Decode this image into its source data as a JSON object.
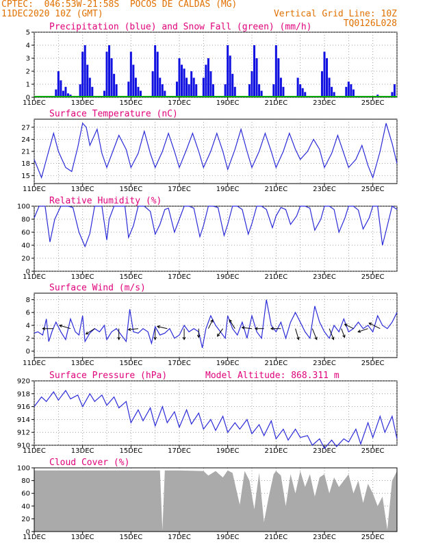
{
  "header": {
    "line1_left": "CPTEC:  046:53W-21:58S  POCOS DE CALDAS (MG)",
    "line2_left": "11DEC2020 10Z (GMT)",
    "line2_right": "Vertical Grid Line: 10Z",
    "line3_right": "TQ0126L028"
  },
  "colors": {
    "series": "#2a2ad8",
    "bars": "#1010e0",
    "snow": "#00aa00",
    "cloud": "#aaaaaa",
    "title": "#e0007a",
    "header": "#e07000"
  },
  "chart_data": [
    {
      "type": "bar",
      "title": "Precipitation (blue) and Snow Fall (green) (mm/h)",
      "ylim": [
        0,
        5
      ],
      "yticks": [
        0,
        1,
        2,
        3,
        4,
        5
      ],
      "xticks": [
        "11DEC",
        "13DEC",
        "15DEC",
        "17DEC",
        "19DEC",
        "21DEC",
        "23DEC",
        "25DEC"
      ],
      "x_range_days": [
        0,
        15
      ],
      "series": [
        {
          "name": "precipitation",
          "color": "blue",
          "days": [
            0.9,
            1.0,
            1.1,
            1.2,
            1.3,
            1.4,
            1.5,
            1.9,
            2.0,
            2.1,
            2.2,
            2.3,
            2.4,
            2.9,
            3.0,
            3.1,
            3.2,
            3.3,
            3.4,
            3.9,
            4.0,
            4.1,
            4.2,
            4.3,
            4.4,
            4.9,
            5.0,
            5.1,
            5.2,
            5.3,
            5.4,
            5.9,
            6.0,
            6.1,
            6.2,
            6.3,
            6.4,
            6.5,
            6.6,
            6.7,
            7.0,
            7.1,
            7.2,
            7.3,
            7.4,
            7.9,
            8.0,
            8.1,
            8.2,
            8.3,
            8.9,
            9.0,
            9.1,
            9.2,
            9.3,
            9.4,
            9.9,
            10.0,
            10.1,
            10.2,
            10.3,
            10.9,
            11.0,
            11.1,
            11.2,
            11.9,
            12.0,
            12.1,
            12.2,
            12.3,
            12.4,
            12.9,
            13.0,
            13.1,
            13.2,
            14.2,
            14.8,
            14.9
          ],
          "values": [
            0.6,
            2.0,
            1.3,
            0.5,
            0.8,
            0.3,
            0.2,
            1.0,
            3.5,
            4.0,
            2.5,
            1.5,
            0.8,
            0.5,
            3.5,
            4.0,
            3.0,
            1.8,
            1.0,
            1.2,
            3.5,
            2.5,
            1.5,
            0.8,
            0.5,
            2.0,
            4.0,
            3.5,
            1.5,
            1.0,
            0.5,
            1.2,
            3.0,
            2.5,
            2.2,
            1.5,
            1.0,
            2.0,
            1.5,
            1.0,
            1.5,
            2.5,
            3.0,
            2.0,
            1.0,
            1.0,
            4.0,
            3.2,
            1.8,
            0.8,
            1.0,
            2.0,
            4.0,
            3.0,
            1.0,
            0.5,
            1.0,
            4.0,
            3.0,
            1.5,
            0.8,
            1.5,
            1.0,
            0.7,
            0.4,
            2.0,
            3.5,
            3.0,
            1.5,
            0.8,
            0.4,
            0.8,
            1.2,
            1.0,
            0.6,
            0.2,
            0.4,
            1.0
          ]
        },
        {
          "name": "snow fall",
          "color": "green",
          "days": [],
          "values": []
        }
      ]
    },
    {
      "type": "line",
      "title": "Surface Temperature (nC)",
      "ylim": [
        13,
        29
      ],
      "yticks": [
        15,
        18,
        21,
        24,
        27
      ],
      "xticks": [
        "11DEC",
        "13DEC",
        "15DEC",
        "17DEC",
        "19DEC",
        "21DEC",
        "23DEC",
        "25DEC"
      ],
      "x": [
        0.0,
        0.3,
        0.55,
        0.8,
        1.0,
        1.3,
        1.55,
        1.8,
        2.0,
        2.15,
        2.3,
        2.6,
        2.8,
        3.0,
        3.25,
        3.5,
        3.8,
        4.0,
        4.3,
        4.55,
        4.8,
        5.0,
        5.3,
        5.55,
        5.8,
        6.0,
        6.3,
        6.55,
        6.8,
        7.0,
        7.3,
        7.55,
        7.8,
        8.0,
        8.3,
        8.55,
        8.8,
        9.0,
        9.3,
        9.55,
        9.8,
        10.0,
        10.3,
        10.55,
        10.8,
        11.0,
        11.3,
        11.55,
        11.8,
        12.0,
        12.3,
        12.55,
        12.8,
        13.0,
        13.3,
        13.55,
        13.8,
        14.0,
        14.3,
        14.55,
        14.8,
        15.0
      ],
      "y": [
        19,
        14.5,
        20,
        25.5,
        21,
        17,
        16,
        22,
        28,
        27,
        22.5,
        26.5,
        20.5,
        17,
        21,
        25,
        21.5,
        17,
        20.5,
        26,
        20.5,
        17,
        21,
        25.5,
        21,
        17,
        21.5,
        25.5,
        21,
        17,
        21,
        25.5,
        21,
        16.5,
        21.5,
        26.5,
        21,
        17,
        21,
        25.5,
        21,
        17,
        21,
        25.5,
        21.5,
        19,
        21,
        24,
        21.5,
        17,
        20.5,
        25,
        20.5,
        17,
        19,
        22.5,
        17.5,
        14.5,
        21,
        28,
        23,
        18
      ]
    },
    {
      "type": "line",
      "title": "Relative Humidity (%)",
      "ylim": [
        0,
        100
      ],
      "yticks": [
        0,
        20,
        40,
        60,
        80,
        100
      ],
      "xticks": [
        "11DEC",
        "13DEC",
        "15DEC",
        "17DEC",
        "19DEC",
        "21DEC",
        "23DEC",
        "25DEC"
      ],
      "x": [
        0.0,
        0.2,
        0.45,
        0.65,
        0.85,
        1.1,
        1.4,
        1.6,
        1.85,
        2.1,
        2.3,
        2.5,
        2.8,
        3.0,
        3.1,
        3.3,
        3.5,
        3.75,
        3.9,
        4.1,
        4.3,
        4.55,
        4.8,
        5.0,
        5.2,
        5.4,
        5.55,
        5.8,
        6.0,
        6.2,
        6.4,
        6.6,
        6.85,
        7.0,
        7.2,
        7.4,
        7.6,
        7.85,
        8.0,
        8.2,
        8.4,
        8.6,
        8.85,
        9.0,
        9.2,
        9.4,
        9.6,
        9.85,
        10.0,
        10.2,
        10.4,
        10.6,
        10.85,
        11.0,
        11.2,
        11.4,
        11.6,
        11.85,
        12.0,
        12.2,
        12.4,
        12.6,
        12.85,
        13.0,
        13.2,
        13.4,
        13.6,
        13.85,
        14.0,
        14.2,
        14.4,
        14.6,
        14.8,
        15.0
      ],
      "y": [
        82,
        100,
        100,
        45,
        80,
        100,
        100,
        98,
        60,
        38,
        58,
        100,
        100,
        48,
        80,
        100,
        100,
        100,
        52,
        70,
        100,
        100,
        92,
        57,
        72,
        95,
        97,
        60,
        80,
        100,
        100,
        97,
        53,
        70,
        100,
        100,
        98,
        55,
        72,
        100,
        100,
        95,
        57,
        73,
        100,
        100,
        95,
        67,
        85,
        98,
        95,
        72,
        85,
        100,
        100,
        97,
        63,
        80,
        100,
        100,
        95,
        60,
        82,
        100,
        100,
        94,
        65,
        82,
        100,
        100,
        40,
        70,
        100,
        95
      ]
    },
    {
      "type": "line",
      "title": "Surface Wind (m/s)",
      "ylim": [
        -1,
        9
      ],
      "yticks": [
        0,
        2,
        4,
        6,
        8
      ],
      "xticks": [
        "11DEC",
        "13DEC",
        "15DEC",
        "17DEC",
        "19DEC",
        "21DEC",
        "23DEC",
        "25DEC"
      ],
      "x": [
        0.0,
        0.15,
        0.35,
        0.5,
        0.6,
        0.75,
        0.9,
        1.1,
        1.3,
        1.5,
        1.7,
        1.85,
        2.0,
        2.1,
        2.3,
        2.5,
        2.7,
        2.9,
        3.0,
        3.2,
        3.4,
        3.6,
        3.8,
        3.95,
        4.1,
        4.3,
        4.5,
        4.7,
        4.85,
        5.0,
        5.2,
        5.4,
        5.6,
        5.8,
        6.0,
        6.2,
        6.4,
        6.6,
        6.8,
        6.95,
        7.1,
        7.3,
        7.5,
        7.7,
        7.9,
        8.0,
        8.2,
        8.4,
        8.6,
        8.8,
        9.0,
        9.2,
        9.4,
        9.6,
        9.8,
        10.0,
        10.2,
        10.4,
        10.6,
        10.8,
        11.0,
        11.2,
        11.4,
        11.6,
        11.8,
        12.0,
        12.2,
        12.4,
        12.6,
        12.8,
        13.0,
        13.2,
        13.4,
        13.6,
        13.8,
        14.0,
        14.2,
        14.4,
        14.6,
        14.8,
        15.0
      ],
      "y": [
        2.8,
        3.0,
        2.5,
        5.0,
        1.5,
        3.2,
        4.5,
        3.0,
        1.8,
        5.0,
        3.0,
        2.5,
        5.5,
        1.5,
        2.8,
        3.5,
        3.0,
        4.0,
        1.8,
        3.0,
        3.5,
        2.5,
        1.5,
        6.5,
        3.0,
        2.8,
        3.5,
        3.0,
        1.2,
        3.8,
        2.5,
        2.8,
        3.5,
        2.0,
        2.5,
        4.0,
        3.0,
        3.5,
        3.0,
        0.5,
        3.5,
        5.5,
        4.0,
        3.0,
        2.0,
        5.5,
        3.5,
        2.5,
        4.5,
        2.0,
        5.5,
        3.0,
        2.0,
        8.0,
        4.0,
        3.0,
        4.5,
        2.0,
        4.5,
        6.0,
        4.5,
        3.0,
        2.0,
        7.0,
        4.5,
        3.0,
        2.0,
        4.0,
        3.0,
        5.0,
        3.0,
        3.5,
        4.5,
        3.5,
        4.0,
        3.0,
        5.5,
        4.0,
        3.5,
        4.5,
        6.0
      ],
      "arrows": {
        "days": [
          0.8,
          1.5,
          2.5,
          3.5,
          4.3,
          5.0,
          5.5,
          6.2,
          6.8,
          7.2,
          7.8,
          8.3,
          9.0,
          9.5,
          10.2,
          10.8,
          11.5,
          12.2,
          12.7,
          13.2,
          13.8,
          14.3
        ],
        "u": [
          -1.0,
          -1.0,
          -0.8,
          0.0,
          -0.9,
          0.0,
          -0.9,
          0.0,
          0.0,
          0.4,
          -0.5,
          -0.5,
          -0.9,
          -0.8,
          -0.9,
          0.3,
          0.4,
          0.4,
          0.3,
          -0.8,
          -0.9,
          -1.0
        ],
        "v": [
          0.0,
          0.3,
          -0.5,
          -1.0,
          -0.1,
          -1.0,
          0.2,
          -1.0,
          -0.8,
          0.8,
          -0.7,
          0.8,
          0.1,
          0.0,
          0.0,
          -1.0,
          -1.0,
          -1.0,
          -0.8,
          0.4,
          -0.3,
          0.5
        ]
      }
    },
    {
      "type": "line",
      "title": "Surface Pressure (hPa)",
      "annotation": "Model Altitude: 868.311 m",
      "ylim": [
        910,
        920
      ],
      "yticks": [
        910,
        912,
        914,
        916,
        918,
        920
      ],
      "xticks": [
        "11DEC",
        "13DEC",
        "15DEC",
        "17DEC",
        "19DEC",
        "21DEC",
        "23DEC",
        "25DEC"
      ],
      "x": [
        0.0,
        0.3,
        0.5,
        0.8,
        1.0,
        1.3,
        1.5,
        1.8,
        2.0,
        2.3,
        2.5,
        2.8,
        3.0,
        3.3,
        3.5,
        3.8,
        4.0,
        4.3,
        4.5,
        4.8,
        5.0,
        5.3,
        5.5,
        5.8,
        6.0,
        6.3,
        6.5,
        6.8,
        7.0,
        7.3,
        7.5,
        7.8,
        8.0,
        8.3,
        8.5,
        8.8,
        9.0,
        9.3,
        9.5,
        9.8,
        10.0,
        10.3,
        10.5,
        10.8,
        11.0,
        11.3,
        11.5,
        11.8,
        12.0,
        12.3,
        12.5,
        12.8,
        13.0,
        13.3,
        13.5,
        13.8,
        14.0,
        14.3,
        14.5,
        14.8,
        15.0
      ],
      "y": [
        916,
        917.5,
        916.8,
        918.3,
        917,
        918.5,
        917.2,
        917.8,
        916,
        918,
        916.8,
        917.8,
        916.2,
        917.5,
        915.8,
        916.8,
        913.5,
        915.5,
        913.8,
        915.8,
        913,
        916,
        913.5,
        915.2,
        912.8,
        915.5,
        913.3,
        915,
        912.5,
        914,
        912.3,
        914.5,
        912,
        913.5,
        912.5,
        914,
        911.8,
        913.2,
        911.5,
        913.8,
        911,
        912.5,
        910.8,
        912.5,
        911.2,
        911.5,
        910,
        911,
        909.5,
        910.8,
        909.8,
        911,
        910.5,
        912.5,
        910.2,
        913.5,
        911.2,
        914.5,
        912,
        914.5,
        911
      ]
    },
    {
      "type": "area",
      "title": "Cloud Cover (%)",
      "ylim": [
        0,
        100
      ],
      "yticks": [
        0,
        20,
        40,
        60,
        80,
        100
      ],
      "xticks": [
        "11DEC",
        "13DEC",
        "15DEC",
        "17DEC",
        "19DEC",
        "21DEC",
        "23DEC",
        "25DEC"
      ],
      "x": [
        0.0,
        1.0,
        2.0,
        3.0,
        4.0,
        5.0,
        5.2,
        5.3,
        5.4,
        6.0,
        7.0,
        7.2,
        7.5,
        7.8,
        8.0,
        8.2,
        8.5,
        8.7,
        8.9,
        9.1,
        9.3,
        9.5,
        9.7,
        9.9,
        10.0,
        10.2,
        10.4,
        10.6,
        10.8,
        11.0,
        11.2,
        11.4,
        11.6,
        11.8,
        12.0,
        12.2,
        12.4,
        12.6,
        12.8,
        13.0,
        13.2,
        13.4,
        13.6,
        13.8,
        14.0,
        14.2,
        14.4,
        14.6,
        14.8,
        15.0
      ],
      "y": [
        96,
        96,
        96,
        96,
        96,
        96,
        96,
        2,
        96,
        96,
        95,
        88,
        95,
        85,
        96,
        92,
        42,
        95,
        80,
        35,
        92,
        15,
        55,
        90,
        95,
        88,
        40,
        90,
        60,
        95,
        70,
        90,
        55,
        85,
        90,
        60,
        85,
        70,
        80,
        90,
        60,
        80,
        45,
        75,
        60,
        40,
        55,
        3,
        80,
        95
      ]
    }
  ]
}
